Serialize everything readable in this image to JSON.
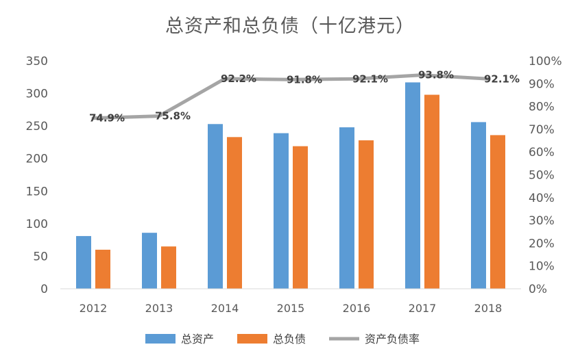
{
  "chart_data": {
    "type": "bar",
    "title": "总资产和总负债（十亿港元）",
    "categories": [
      "2012",
      "2013",
      "2014",
      "2015",
      "2016",
      "2017",
      "2018"
    ],
    "series": [
      {
        "name": "总资产",
        "type": "bar",
        "axis": "left",
        "color": "#5B9BD5",
        "values": [
          81,
          86,
          253,
          239,
          248,
          317,
          256
        ]
      },
      {
        "name": "总负债",
        "type": "bar",
        "axis": "left",
        "color": "#ED7D31",
        "values": [
          60,
          65,
          233,
          219,
          228,
          298,
          236
        ]
      },
      {
        "name": "资产负债率",
        "type": "line",
        "axis": "right",
        "color": "#A5A5A5",
        "values": [
          74.9,
          75.8,
          92.2,
          91.8,
          92.1,
          93.8,
          92.1
        ],
        "labels": [
          "74.9%",
          "75.8%",
          "92.2%",
          "91.8%",
          "92.1%",
          "93.8%",
          "92.1%"
        ]
      }
    ],
    "ylim": [
      0,
      350
    ],
    "yticks": [
      "0",
      "50",
      "100",
      "150",
      "200",
      "250",
      "300",
      "350"
    ],
    "y2lim": [
      0,
      100
    ],
    "y2ticks": [
      "0%",
      "10%",
      "20%",
      "30%",
      "40%",
      "50%",
      "60%",
      "70%",
      "80%",
      "90%",
      "100%"
    ],
    "grid": false,
    "legend_position": "bottom"
  }
}
